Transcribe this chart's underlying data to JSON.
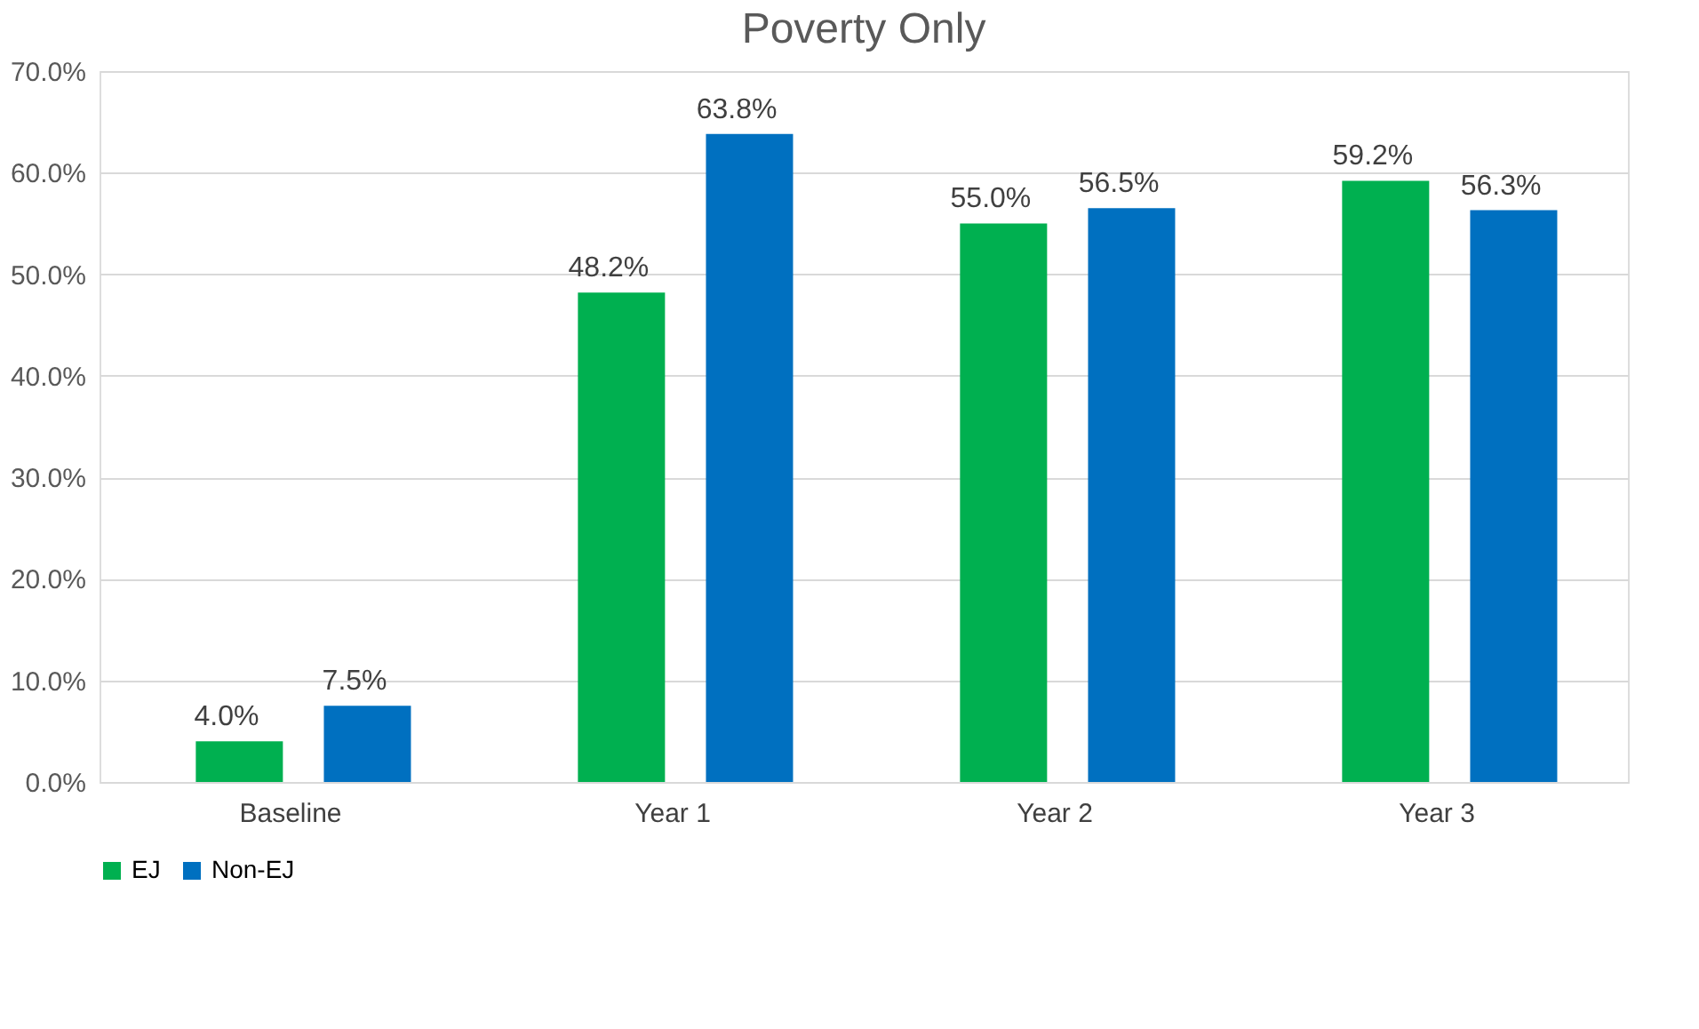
{
  "chart_data": {
    "type": "bar",
    "title": "Poverty Only",
    "categories": [
      "Baseline",
      "Year 1",
      "Year 2",
      "Year 3"
    ],
    "series": [
      {
        "name": "EJ",
        "color": "#00b050",
        "values": [
          4.0,
          48.2,
          55.0,
          59.2
        ],
        "value_labels": [
          "4.0%",
          "48.2%",
          "55.0%",
          "59.2%"
        ]
      },
      {
        "name": "Non-EJ",
        "color": "#0070c0",
        "values": [
          7.5,
          63.8,
          56.5,
          56.3
        ],
        "value_labels": [
          "7.5%",
          "63.8%",
          "56.5%",
          "56.3%"
        ]
      }
    ],
    "ylim": [
      0,
      70
    ],
    "yticks": [
      {
        "value": 0,
        "label": "0.0%"
      },
      {
        "value": 10,
        "label": "10.0%"
      },
      {
        "value": 20,
        "label": "20.0%"
      },
      {
        "value": 30,
        "label": "30.0%"
      },
      {
        "value": 40,
        "label": "40.0%"
      },
      {
        "value": 50,
        "label": "50.0%"
      },
      {
        "value": 60,
        "label": "60.0%"
      },
      {
        "value": 70,
        "label": "70.0%"
      }
    ],
    "grid": "y",
    "legend": "bottom"
  }
}
